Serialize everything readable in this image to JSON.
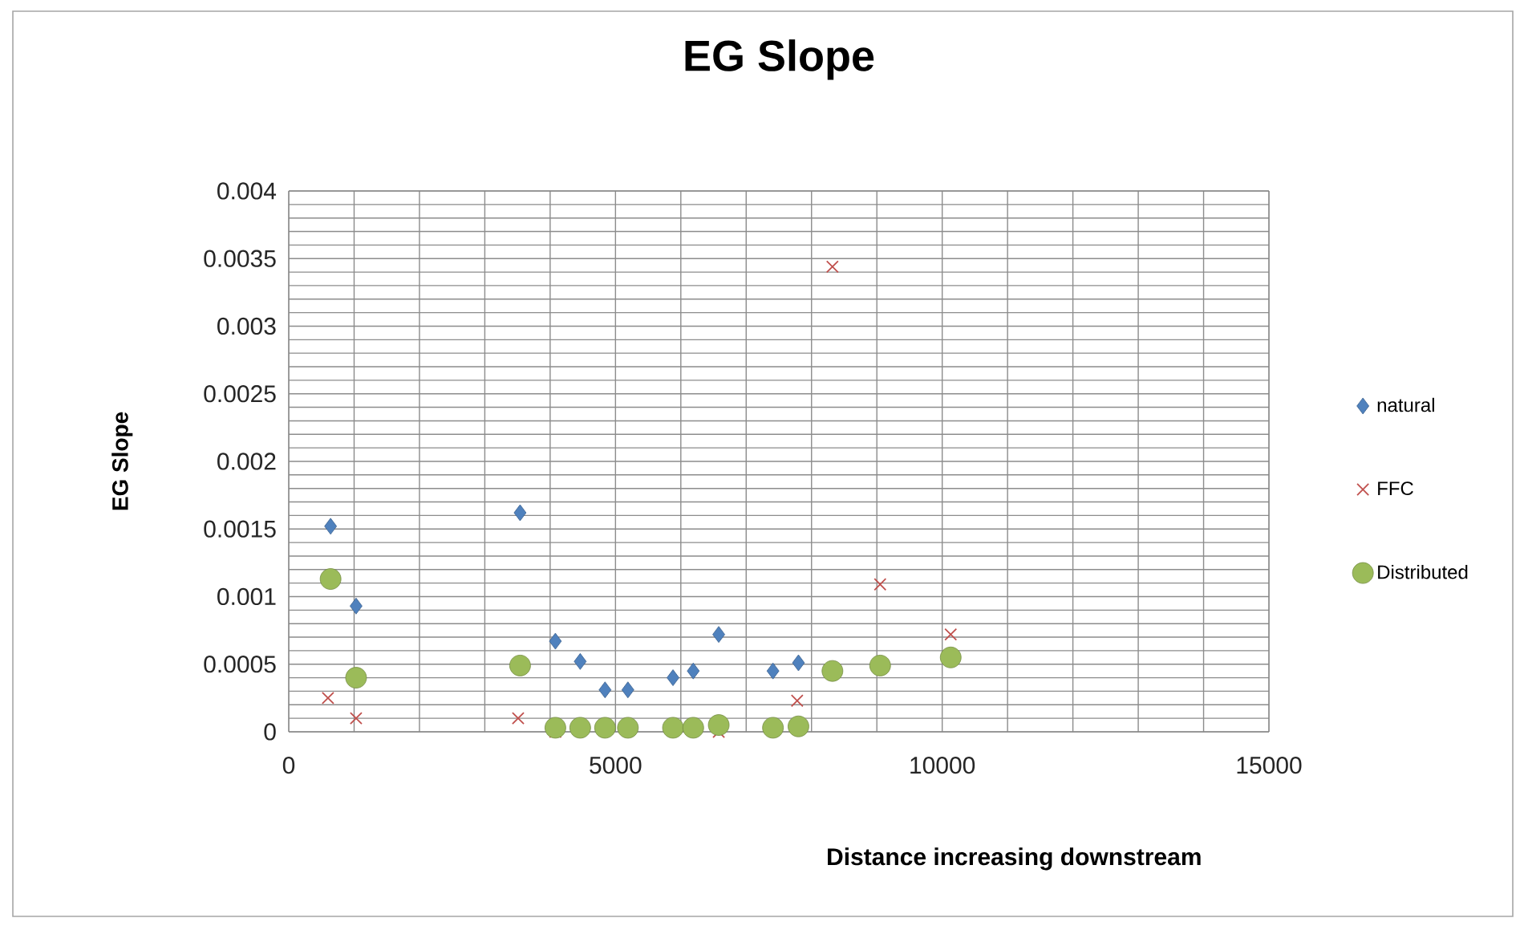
{
  "chart_data": {
    "type": "scatter",
    "title": "EG Slope",
    "xlabel": "Distance increasing downstream",
    "ylabel": "EG Slope",
    "xlim": [
      0,
      15000
    ],
    "ylim": [
      0,
      0.004
    ],
    "xticks": [
      0,
      {
        "value": 1000,
        "label": null
      },
      {
        "value": 2000,
        "label": null
      },
      {
        "value": 3000,
        "label": null
      },
      {
        "value": 4000,
        "label": null
      },
      5000,
      {
        "value": 6000,
        "label": null
      },
      {
        "value": 7000,
        "label": null
      },
      {
        "value": 8000,
        "label": null
      },
      {
        "value": 9000,
        "label": null
      },
      10000,
      {
        "value": 11000,
        "label": null
      },
      {
        "value": 12000,
        "label": null
      },
      {
        "value": 13000,
        "label": null
      },
      {
        "value": 14000,
        "label": null
      },
      15000
    ],
    "yticks": [
      0,
      {
        "value": 0.0001,
        "label": null
      },
      {
        "value": 0.0002,
        "label": null
      },
      {
        "value": 0.0003,
        "label": null
      },
      {
        "value": 0.0004,
        "label": null
      },
      0.0005,
      {
        "value": 0.0006,
        "label": null
      },
      {
        "value": 0.0007,
        "label": null
      },
      {
        "value": 0.0008,
        "label": null
      },
      {
        "value": 0.0009,
        "label": null
      },
      0.001,
      {
        "value": 0.0011,
        "label": null
      },
      {
        "value": 0.0012,
        "label": null
      },
      {
        "value": 0.0013,
        "label": null
      },
      {
        "value": 0.0014,
        "label": null
      },
      0.0015,
      {
        "value": 0.0016,
        "label": null
      },
      {
        "value": 0.0017,
        "label": null
      },
      {
        "value": 0.0018,
        "label": null
      },
      {
        "value": 0.0019,
        "label": null
      },
      0.002,
      {
        "value": 0.0021,
        "label": null
      },
      {
        "value": 0.0022,
        "label": null
      },
      {
        "value": 0.0023,
        "label": null
      },
      {
        "value": 0.0024,
        "label": null
      },
      0.0025,
      {
        "value": 0.0026,
        "label": null
      },
      {
        "value": 0.0027,
        "label": null
      },
      {
        "value": 0.0028,
        "label": null
      },
      {
        "value": 0.0029,
        "label": null
      },
      0.003,
      {
        "value": 0.0031,
        "label": null
      },
      {
        "value": 0.0032,
        "label": null
      },
      {
        "value": 0.0033,
        "label": null
      },
      {
        "value": 0.0034,
        "label": null
      },
      0.0035,
      {
        "value": 0.0036,
        "label": null
      },
      {
        "value": 0.0037,
        "label": null
      },
      {
        "value": 0.0038,
        "label": null
      },
      {
        "value": 0.0039,
        "label": null
      },
      0.004
    ],
    "grid": true,
    "legend": "right",
    "series": [
      {
        "name": "natural",
        "color": "#4f81bd",
        "marker": "diamond",
        "x": [
          640,
          1030,
          3540,
          4080,
          4460,
          4840,
          5190,
          5880,
          6190,
          6580,
          7410,
          7800
        ],
        "values": [
          0.00152,
          0.00093,
          0.00162,
          0.00067,
          0.00052,
          0.00031,
          0.00031,
          0.0004,
          0.00045,
          0.00072,
          0.00045,
          0.00051
        ]
      },
      {
        "name": "FFC",
        "color": "#c0504d",
        "marker": "cross",
        "x": [
          600,
          1030,
          3510,
          4080,
          4460,
          4840,
          5190,
          5880,
          6190,
          6580,
          7410,
          7780,
          8320,
          9050,
          10130
        ],
        "values": [
          0.00025,
          0.0001,
          0.0001,
          0,
          null,
          null,
          null,
          null,
          null,
          0,
          null,
          0.00023,
          0.00344,
          0.00109,
          0.00072
        ]
      },
      {
        "name": "Distributed",
        "color": "#9bbb59",
        "marker": "circle",
        "x": [
          640,
          1030,
          3540,
          4080,
          4460,
          4840,
          5190,
          5880,
          6190,
          6580,
          7410,
          7800,
          8320,
          9050,
          10130
        ],
        "values": [
          0.00113,
          0.0004,
          0.00049,
          3e-05,
          3e-05,
          3e-05,
          3e-05,
          3e-05,
          3e-05,
          5e-05,
          3e-05,
          4e-05,
          0.00045,
          0.00049,
          0.00055
        ]
      }
    ]
  }
}
